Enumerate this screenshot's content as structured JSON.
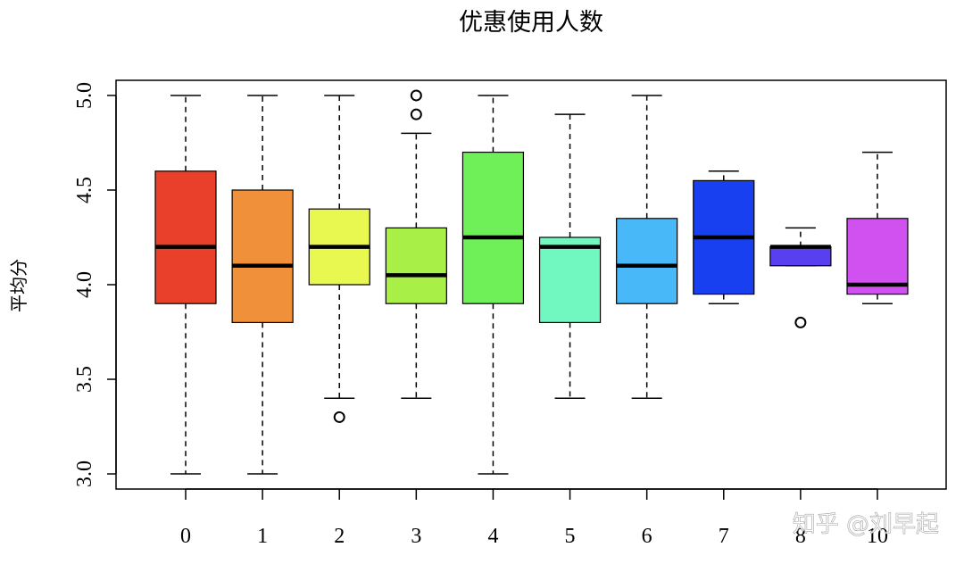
{
  "chart_data": {
    "type": "boxplot",
    "title": "优惠使用人数",
    "xlabel": "",
    "ylabel": "平均分",
    "ylim": [
      2.92,
      5.08
    ],
    "yticks": [
      "3.0",
      "3.5",
      "4.0",
      "4.5",
      "5.0"
    ],
    "categories": [
      "0",
      "1",
      "2",
      "3",
      "4",
      "5",
      "6",
      "7",
      "8",
      "10"
    ],
    "boxes": [
      {
        "category": "0",
        "whisker_low": 3.0,
        "q1": 3.9,
        "median": 4.2,
        "q3": 4.6,
        "whisker_high": 5.0,
        "outliers": [],
        "color": "#E8402A"
      },
      {
        "category": "1",
        "whisker_low": 3.0,
        "q1": 3.8,
        "median": 4.1,
        "q3": 4.5,
        "whisker_high": 5.0,
        "outliers": [],
        "color": "#F0903A"
      },
      {
        "category": "2",
        "whisker_low": 3.4,
        "q1": 4.0,
        "median": 4.2,
        "q3": 4.4,
        "whisker_high": 5.0,
        "outliers": [
          3.3
        ],
        "color": "#E8F850"
      },
      {
        "category": "3",
        "whisker_low": 3.4,
        "q1": 3.9,
        "median": 4.05,
        "q3": 4.3,
        "whisker_high": 4.8,
        "outliers": [
          4.9,
          5.0
        ],
        "color": "#A8F048"
      },
      {
        "category": "4",
        "whisker_low": 3.0,
        "q1": 3.9,
        "median": 4.25,
        "q3": 4.7,
        "whisker_high": 5.0,
        "outliers": [],
        "color": "#70F058"
      },
      {
        "category": "5",
        "whisker_low": 3.4,
        "q1": 3.8,
        "median": 4.2,
        "q3": 4.25,
        "whisker_high": 4.9,
        "outliers": [],
        "color": "#70F8C0"
      },
      {
        "category": "6",
        "whisker_low": 3.4,
        "q1": 3.9,
        "median": 4.1,
        "q3": 4.35,
        "whisker_high": 5.0,
        "outliers": [],
        "color": "#48B8F8"
      },
      {
        "category": "7",
        "whisker_low": 3.9,
        "q1": 3.95,
        "median": 4.25,
        "q3": 4.55,
        "whisker_high": 4.6,
        "outliers": [],
        "color": "#1840F0"
      },
      {
        "category": "8",
        "whisker_low": 4.1,
        "q1": 4.1,
        "median": 4.2,
        "q3": 4.2,
        "whisker_high": 4.3,
        "outliers": [
          3.8
        ],
        "color": "#5840F0"
      },
      {
        "category": "10",
        "whisker_low": 3.9,
        "q1": 3.95,
        "median": 4.0,
        "q3": 4.35,
        "whisker_high": 4.7,
        "outliers": [],
        "color": "#D050F0"
      }
    ],
    "grid": false,
    "legend": "none"
  },
  "watermark": "知乎 @刘早起"
}
